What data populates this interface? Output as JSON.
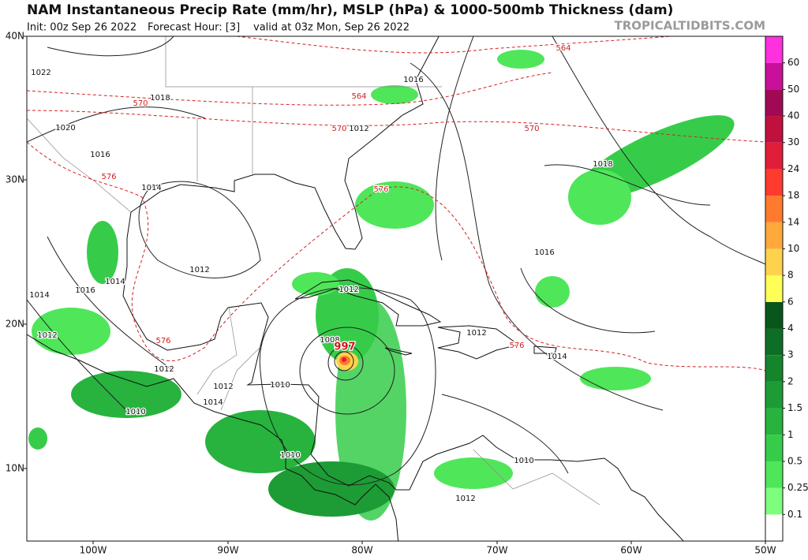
{
  "header": {
    "title": "NAM Instantaneous Precip Rate (mm/hr), MSLP (hPa) & 1000-500mb Thickness (dam)",
    "subtitle": [
      "Init: 00z Sep 26 2022",
      "Forecast Hour: [3]",
      "valid at 03z Mon, Sep 26 2022"
    ],
    "source": "TROPICALTIDBITS.COM"
  },
  "map": {
    "latitude_labels": [
      "40N",
      "30N",
      "20N",
      "10N"
    ],
    "longitude_labels": [
      "100W",
      "90W",
      "80W",
      "70W",
      "60W",
      "50W"
    ],
    "isobar_labels": [
      "1022",
      "1018",
      "1020",
      "1016",
      "1014",
      "1012",
      "1014",
      "1016",
      "1014",
      "1012",
      "1012",
      "1010",
      "1012",
      "1014",
      "1010",
      "1008",
      "997",
      "1012",
      "1012",
      "1016",
      "1018",
      "1016",
      "1012",
      "1014",
      "1010",
      "1012",
      "1010"
    ],
    "thickness_labels": [
      "564",
      "564",
      "570",
      "570",
      "570",
      "576",
      "576",
      "576",
      "576"
    ]
  },
  "colorbar": {
    "labels": [
      "0.1",
      "0.25",
      "0.5",
      "1",
      "1.5",
      "2",
      "3",
      "4",
      "6",
      "8",
      "10",
      "14",
      "18",
      "24",
      "30",
      "40",
      "50",
      "60"
    ],
    "colors": [
      "#ffffff",
      "#7dff7d",
      "#4fe65a",
      "#36cc4a",
      "#27b33e",
      "#1d9c35",
      "#15852c",
      "#0f6e25",
      "#08561c",
      "#ffff55",
      "#ffd24d",
      "#ffa83c",
      "#ff7a2e",
      "#ff3a2e",
      "#e01e3a",
      "#c0103e",
      "#a00a55",
      "#c8109a",
      "#ff30dd"
    ]
  }
}
